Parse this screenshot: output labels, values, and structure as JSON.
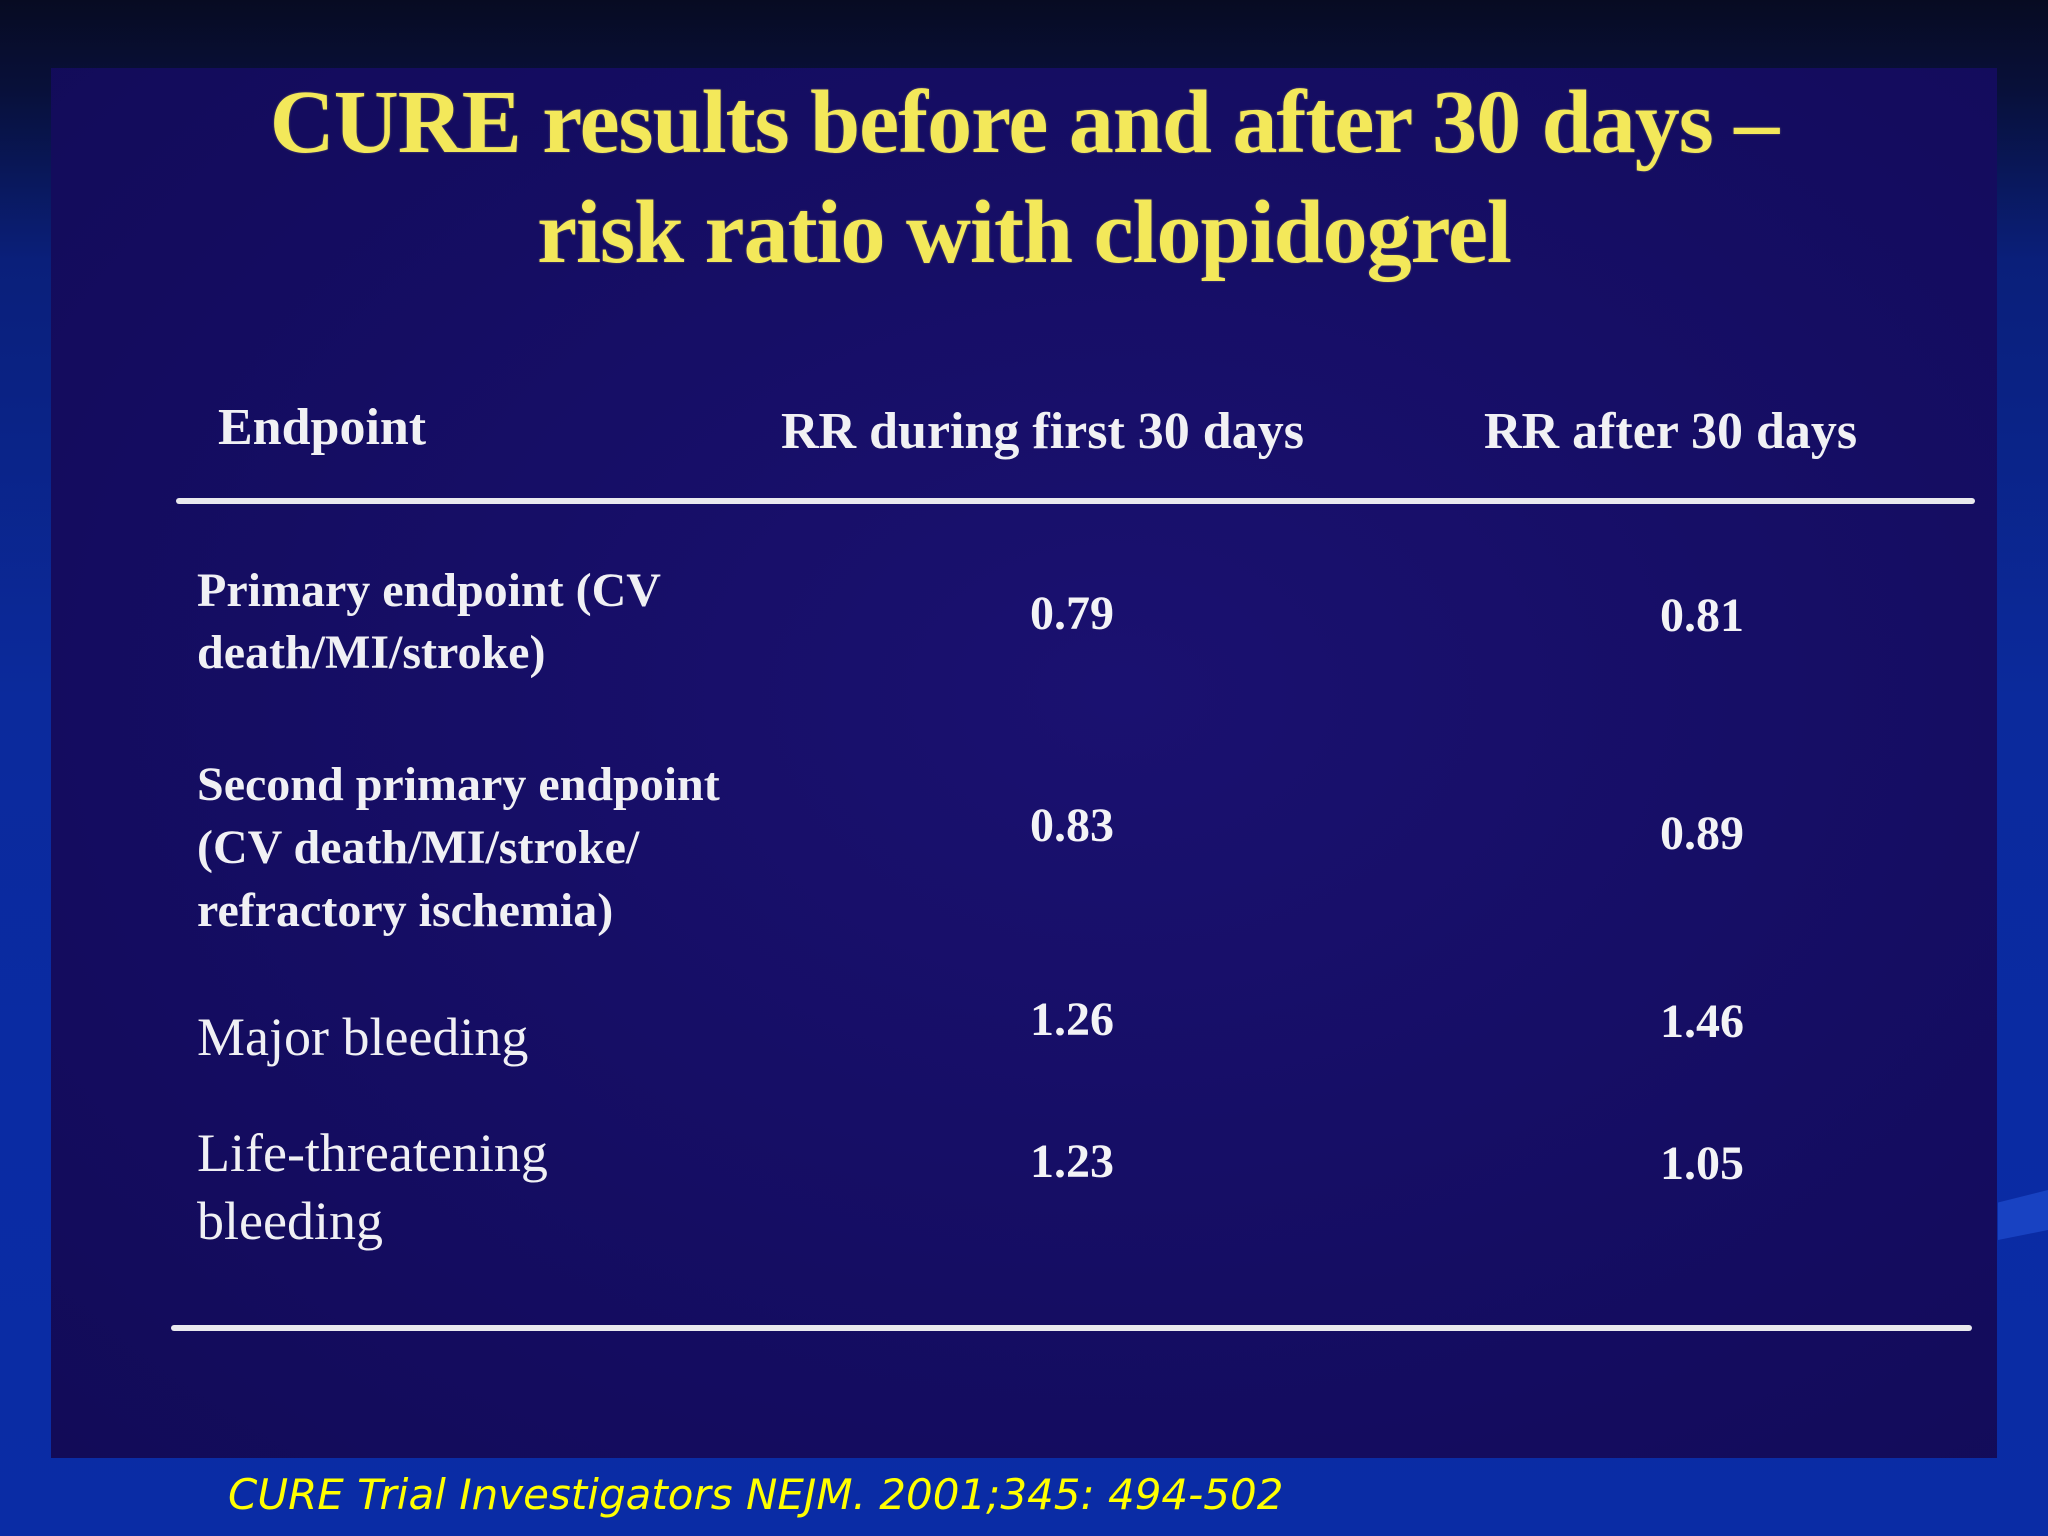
{
  "slide": {
    "title_line1": "CURE results before and after 30 days –",
    "title_line2": "risk ratio with clopidogrel"
  },
  "table": {
    "headers": [
      "Endpoint",
      "RR during first 30 days",
      "RR after 30 days"
    ],
    "rows": [
      {
        "endpoint_lines": [
          "Primary endpoint (CV",
          "death/MI/stroke)"
        ],
        "rr_first_30": "0.79",
        "rr_after_30": "0.81"
      },
      {
        "endpoint_lines": [
          "Second primary endpoint",
          "(CV death/MI/stroke/",
          "refractory ischemia)"
        ],
        "rr_first_30": "0.83",
        "rr_after_30": "0.89"
      },
      {
        "endpoint_lines": [
          "Major bleeding"
        ],
        "rr_first_30": "1.26",
        "rr_after_30": "1.46"
      },
      {
        "endpoint_lines": [
          "Life-threatening",
          "bleeding"
        ],
        "rr_first_30": "1.23",
        "rr_after_30": "1.05"
      }
    ]
  },
  "citation": "CURE Trial Investigators NEJM. 2001;345: 494-502",
  "colors": {
    "title": "#f3e85a",
    "citation": "#ffff00",
    "slide_background": "#150d63",
    "page_background": "#0a2ba3"
  }
}
